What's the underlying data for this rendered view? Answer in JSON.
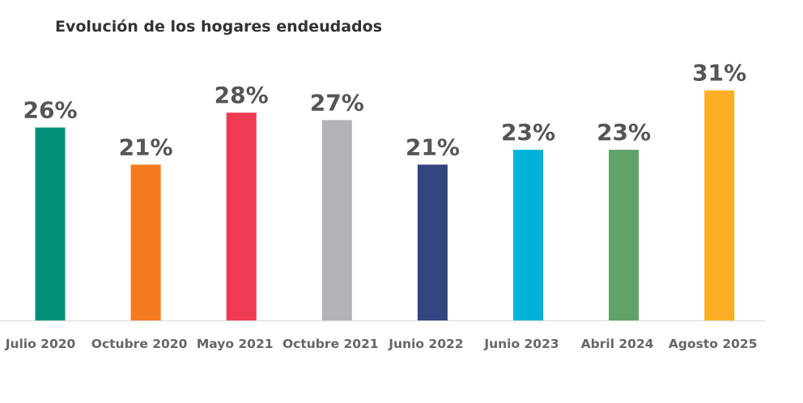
{
  "chart_data": {
    "type": "bar",
    "title": "Evolución de los hogares endeudados",
    "categories": [
      "Julio 2020",
      "Octubre 2020",
      "Mayo 2021",
      "Octubre 2021",
      "Junio 2022",
      "Junio 2023",
      "Abril 2024",
      "Agosto 2025"
    ],
    "values": [
      26,
      21,
      28,
      27,
      21,
      23,
      23,
      31
    ],
    "data_labels": [
      "26%",
      "21%",
      "28%",
      "27%",
      "21%",
      "23%",
      "23%",
      "31%"
    ],
    "colors": [
      "#00907a",
      "#f47b20",
      "#ee3a52",
      "#b1b3b6",
      "#33467f",
      "#00b3d4",
      "#5fa36b",
      "#fbae24"
    ],
    "xlabel": "",
    "ylabel": "",
    "ylim": [
      0,
      31
    ],
    "grid": false,
    "legend": "none"
  }
}
